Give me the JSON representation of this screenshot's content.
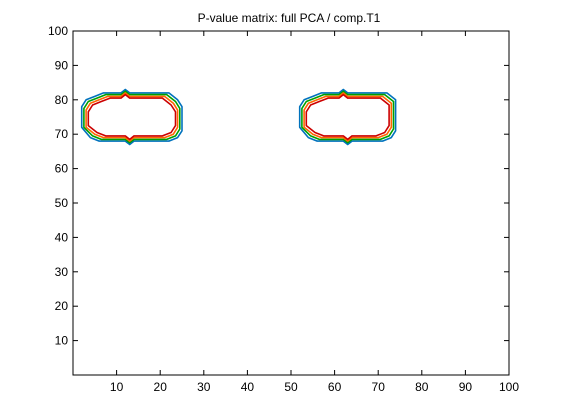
{
  "chart_data": {
    "type": "line",
    "title": "P-value matrix: full PCA / comp.T1",
    "xlabel": "",
    "ylabel": "",
    "xlim": [
      0,
      100
    ],
    "ylim": [
      0,
      100
    ],
    "x_ticks": [
      10,
      20,
      30,
      40,
      50,
      60,
      70,
      80,
      90,
      100
    ],
    "y_ticks": [
      10,
      20,
      30,
      40,
      50,
      60,
      70,
      80,
      90,
      100
    ],
    "grid": false,
    "legend": "none",
    "series": [
      {
        "color": "#0072bd",
        "contours": [
          [
            [
              2,
              74
            ],
            [
              2,
              78
            ],
            [
              3,
              80
            ],
            [
              5,
              81
            ],
            [
              7,
              82
            ],
            [
              11,
              82
            ],
            [
              12,
              83
            ],
            [
              13,
              82
            ],
            [
              22,
              82
            ],
            [
              24,
              80
            ],
            [
              25,
              78
            ],
            [
              25,
              71
            ],
            [
              24,
              69
            ],
            [
              22,
              68
            ],
            [
              14,
              68
            ],
            [
              13,
              67
            ],
            [
              12,
              68
            ],
            [
              6,
              68
            ],
            [
              4,
              69
            ],
            [
              2,
              72
            ],
            [
              2,
              74
            ]
          ],
          [
            [
              52,
              74
            ],
            [
              52,
              78
            ],
            [
              53,
              80
            ],
            [
              55,
              81
            ],
            [
              57,
              82
            ],
            [
              61,
              82
            ],
            [
              62,
              83
            ],
            [
              63,
              82
            ],
            [
              72,
              82
            ],
            [
              74,
              80
            ],
            [
              74,
              78
            ],
            [
              74,
              71
            ],
            [
              73,
              69
            ],
            [
              71,
              68
            ],
            [
              64,
              68
            ],
            [
              63,
              67
            ],
            [
              62,
              68
            ],
            [
              56,
              68
            ],
            [
              54,
              69
            ],
            [
              52,
              72
            ],
            [
              52,
              74
            ]
          ]
        ]
      },
      {
        "color": "#00a000",
        "contours": [
          [
            [
              2.5,
              74
            ],
            [
              2.5,
              77.5
            ],
            [
              3.5,
              79.5
            ],
            [
              5.5,
              80.5
            ],
            [
              7.5,
              81.5
            ],
            [
              11,
              81.5
            ],
            [
              12,
              82.5
            ],
            [
              13,
              81.5
            ],
            [
              21.5,
              81.5
            ],
            [
              23.5,
              79.5
            ],
            [
              24.5,
              77.5
            ],
            [
              24.5,
              71.5
            ],
            [
              23.5,
              69.5
            ],
            [
              21.5,
              68.5
            ],
            [
              14,
              68.5
            ],
            [
              13,
              67.5
            ],
            [
              12,
              68.5
            ],
            [
              6.5,
              68.5
            ],
            [
              4.5,
              69.5
            ],
            [
              2.5,
              72
            ],
            [
              2.5,
              74
            ]
          ],
          [
            [
              52.5,
              74
            ],
            [
              52.5,
              77.5
            ],
            [
              53.5,
              79.5
            ],
            [
              55.5,
              80.5
            ],
            [
              57.5,
              81.5
            ],
            [
              61,
              81.5
            ],
            [
              62,
              82.5
            ],
            [
              63,
              81.5
            ],
            [
              71.5,
              81.5
            ],
            [
              73.5,
              79.5
            ],
            [
              73.5,
              77.5
            ],
            [
              73.5,
              71.5
            ],
            [
              72.5,
              69.5
            ],
            [
              70.5,
              68.5
            ],
            [
              64,
              68.5
            ],
            [
              63,
              67.5
            ],
            [
              62,
              68.5
            ],
            [
              56.5,
              68.5
            ],
            [
              54.5,
              69.5
            ],
            [
              52.5,
              72
            ],
            [
              52.5,
              74
            ]
          ]
        ]
      },
      {
        "color": "#ff6600",
        "contours": [
          [
            [
              3,
              74
            ],
            [
              3,
              77
            ],
            [
              4,
              79
            ],
            [
              6,
              80
            ],
            [
              8,
              81
            ],
            [
              11,
              81
            ],
            [
              12,
              82
            ],
            [
              13,
              81
            ],
            [
              21,
              81
            ],
            [
              23,
              79
            ],
            [
              24,
              77
            ],
            [
              24,
              72
            ],
            [
              23,
              70
            ],
            [
              21,
              69
            ],
            [
              14,
              69
            ],
            [
              13,
              68
            ],
            [
              12,
              69
            ],
            [
              7,
              69
            ],
            [
              5,
              70
            ],
            [
              3,
              72
            ],
            [
              3,
              74
            ]
          ],
          [
            [
              53,
              74
            ],
            [
              53,
              77
            ],
            [
              54,
              79
            ],
            [
              56,
              80
            ],
            [
              58,
              81
            ],
            [
              61,
              81
            ],
            [
              62,
              82
            ],
            [
              63,
              81
            ],
            [
              71,
              81
            ],
            [
              73,
              79
            ],
            [
              73,
              77
            ],
            [
              73,
              72
            ],
            [
              72,
              70
            ],
            [
              70,
              69
            ],
            [
              64,
              69
            ],
            [
              63,
              68
            ],
            [
              62,
              69
            ],
            [
              57,
              69
            ],
            [
              55,
              70
            ],
            [
              53,
              72
            ],
            [
              53,
              74
            ]
          ]
        ]
      },
      {
        "color": "#cc0000",
        "contours": [
          [
            [
              3.5,
              74
            ],
            [
              3.5,
              76.5
            ],
            [
              4.5,
              78.5
            ],
            [
              6.5,
              79.5
            ],
            [
              8.5,
              80.5
            ],
            [
              11,
              80.5
            ],
            [
              12,
              81.5
            ],
            [
              13,
              80.5
            ],
            [
              20.5,
              80.5
            ],
            [
              22.5,
              78.5
            ],
            [
              23.5,
              76.5
            ],
            [
              23.5,
              72.5
            ],
            [
              22.5,
              70.5
            ],
            [
              20.5,
              69.5
            ],
            [
              14,
              69.5
            ],
            [
              13,
              68.5
            ],
            [
              12,
              69.5
            ],
            [
              7.5,
              69.5
            ],
            [
              5.5,
              70.5
            ],
            [
              3.5,
              72.5
            ],
            [
              3.5,
              74
            ]
          ],
          [
            [
              53.5,
              74
            ],
            [
              53.5,
              76.5
            ],
            [
              54.5,
              78.5
            ],
            [
              56.5,
              79.5
            ],
            [
              58.5,
              80.5
            ],
            [
              61,
              80.5
            ],
            [
              62,
              81.5
            ],
            [
              63,
              80.5
            ],
            [
              70.5,
              80.5
            ],
            [
              72.5,
              78.5
            ],
            [
              72.5,
              76.5
            ],
            [
              72.5,
              72.5
            ],
            [
              71.5,
              70.5
            ],
            [
              69.5,
              69.5
            ],
            [
              64,
              69.5
            ],
            [
              63,
              68.5
            ],
            [
              62,
              69.5
            ],
            [
              57.5,
              69.5
            ],
            [
              55.5,
              70.5
            ],
            [
              53.5,
              72.5
            ],
            [
              53.5,
              74
            ]
          ]
        ]
      }
    ]
  }
}
